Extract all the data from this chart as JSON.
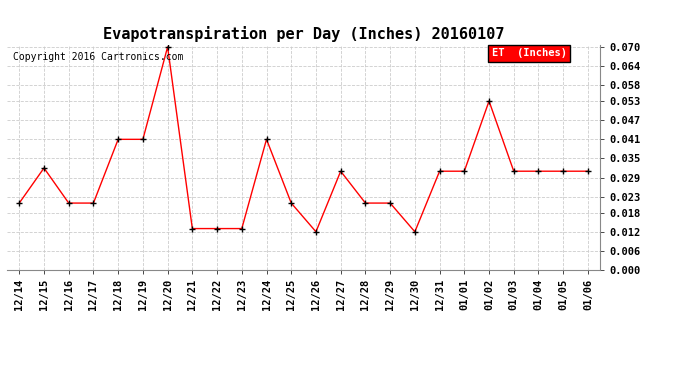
{
  "title": "Evapotranspiration per Day (Inches) 20160107",
  "copyright_text": "Copyright 2016 Cartronics.com",
  "legend_label": "ET  (Inches)",
  "x_labels": [
    "12/14",
    "12/15",
    "12/16",
    "12/17",
    "12/18",
    "12/19",
    "12/20",
    "12/21",
    "12/22",
    "12/23",
    "12/24",
    "12/25",
    "12/26",
    "12/27",
    "12/28",
    "12/29",
    "12/30",
    "12/31",
    "01/01",
    "01/02",
    "01/03",
    "01/04",
    "01/05",
    "01/06"
  ],
  "y_values": [
    0.021,
    0.032,
    0.021,
    0.021,
    0.041,
    0.041,
    0.07,
    0.013,
    0.013,
    0.013,
    0.041,
    0.021,
    0.012,
    0.031,
    0.021,
    0.021,
    0.012,
    0.031,
    0.031,
    0.053,
    0.031,
    0.031,
    0.031,
    0.031
  ],
  "line_color": "#ff0000",
  "marker_color": "#000000",
  "ylim": [
    0.0,
    0.0706
  ],
  "yticks": [
    0.0,
    0.006,
    0.012,
    0.018,
    0.023,
    0.029,
    0.035,
    0.041,
    0.047,
    0.053,
    0.058,
    0.064,
    0.07
  ],
  "grid_color": "#cccccc",
  "bg_color": "#ffffff",
  "title_fontsize": 11,
  "copyright_fontsize": 7,
  "tick_fontsize": 7.5
}
